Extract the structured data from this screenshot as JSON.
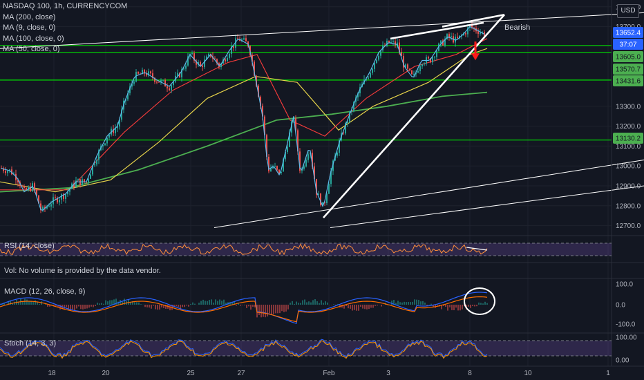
{
  "legend": {
    "symbol": "NASDAQ 100, 1h, CURRENCYCOM",
    "ma200": "MA (200, close)",
    "ma9": "MA (9, close, 0)",
    "ma100": "MA (100, close, 0)",
    "ma50": "MA (50, close, 0)"
  },
  "currency": "USD",
  "annotation": "Bearish",
  "volume_note": "Vol: No volume is provided by the data vendor.",
  "price_scale": {
    "ticks": [
      "13800.0",
      "13700.0",
      "13300.0",
      "13200.0",
      "13100.0",
      "13000.0",
      "12900.0",
      "12800.0",
      "12700.0"
    ],
    "tick_values": [
      13800,
      13700,
      13300,
      13200,
      13100,
      13000,
      12900,
      12800,
      12700
    ],
    "labels": [
      {
        "text": "13652.4",
        "value": 13652.4,
        "bg": "#2962ff",
        "fg": "#ffffff"
      },
      {
        "text": "37:07",
        "value": 13628,
        "bg": "#2962ff",
        "fg": "#ffffff"
      },
      {
        "text": "13605.0",
        "value": 13605.0,
        "bg": "#4caf50",
        "fg": "#131722"
      },
      {
        "text": "13570.7",
        "value": 13570.7,
        "bg": "#4caf50",
        "fg": "#131722"
      },
      {
        "text": "13431.6",
        "value": 13431.6,
        "bg": "#4caf50",
        "fg": "#131722"
      },
      {
        "text": "13130.2",
        "value": 13130.2,
        "bg": "#4caf50",
        "fg": "#131722"
      }
    ]
  },
  "time_axis": [
    "18",
    "20",
    "25",
    "27",
    "Feb",
    "3",
    "8",
    "10",
    "1"
  ],
  "panes": {
    "rsi": {
      "label": "RSI (14, close)"
    },
    "macd": {
      "label": "MACD (12, 26, close, 9)",
      "ticks": [
        "100.0",
        "0.0",
        "-100.0"
      ],
      "tick_values": [
        100,
        0,
        -100
      ]
    },
    "stoch": {
      "label": "Stoch (14, 3, 3)",
      "ticks": [
        "100.00",
        "0.00"
      ],
      "tick_values": [
        100,
        0
      ]
    }
  },
  "colors": {
    "up": "#26a69a",
    "down": "#ef5350",
    "ma9": "#5db8e8",
    "ma50": "#ef3a3a",
    "ma100": "#e6d34a",
    "ma200": "#4caf50",
    "support": "#00e600",
    "trend": "#ffffff",
    "rsi": "#ff8f3a",
    "macd": "#2962ff",
    "signal": "#ff6d00",
    "stoch_k": "#2962ff",
    "stoch_d": "#ff9800"
  },
  "chart_data": {
    "type": "candlestick",
    "title": "NASDAQ 100, 1h, CURRENCYCOM",
    "ylim": [
      12650,
      13820
    ],
    "support_levels": [
      13605.0,
      13570.7,
      13431.6,
      13130.2
    ],
    "last_price": 13652.4,
    "close_path": [
      [
        0,
        12990
      ],
      [
        15,
        12975
      ],
      [
        25,
        12940
      ],
      [
        35,
        12870
      ],
      [
        48,
        12900
      ],
      [
        60,
        12770
      ],
      [
        75,
        12820
      ],
      [
        95,
        12860
      ],
      [
        110,
        12920
      ],
      [
        125,
        12920
      ],
      [
        140,
        13050
      ],
      [
        155,
        13150
      ],
      [
        170,
        13200
      ],
      [
        180,
        13320
      ],
      [
        195,
        13450
      ],
      [
        210,
        13470
      ],
      [
        228,
        13430
      ],
      [
        245,
        13400
      ],
      [
        262,
        13470
      ],
      [
        275,
        13560
      ],
      [
        290,
        13500
      ],
      [
        305,
        13560
      ],
      [
        318,
        13500
      ],
      [
        332,
        13580
      ],
      [
        345,
        13640
      ],
      [
        360,
        13610
      ],
      [
        372,
        13400
      ],
      [
        380,
        13250
      ],
      [
        388,
        12980
      ],
      [
        396,
        13000
      ],
      [
        405,
        12950
      ],
      [
        415,
        13100
      ],
      [
        425,
        13250
      ],
      [
        435,
        12960
      ],
      [
        448,
        13100
      ],
      [
        458,
        12870
      ],
      [
        468,
        12790
      ],
      [
        478,
        12960
      ],
      [
        492,
        13130
      ],
      [
        505,
        13250
      ],
      [
        520,
        13380
      ],
      [
        535,
        13470
      ],
      [
        548,
        13570
      ],
      [
        562,
        13620
      ],
      [
        575,
        13610
      ],
      [
        585,
        13500
      ],
      [
        598,
        13440
      ],
      [
        610,
        13530
      ],
      [
        622,
        13530
      ],
      [
        635,
        13600
      ],
      [
        648,
        13650
      ],
      [
        660,
        13630
      ],
      [
        670,
        13660
      ],
      [
        680,
        13700
      ],
      [
        692,
        13680
      ],
      [
        702,
        13660
      ]
    ],
    "moving_averages": {
      "ma9": "follows price closely",
      "ma50": [
        [
          0,
          12880
        ],
        [
          100,
          12880
        ],
        [
          180,
          13170
        ],
        [
          250,
          13380
        ],
        [
          330,
          13520
        ],
        [
          372,
          13560
        ],
        [
          420,
          13230
        ],
        [
          470,
          13150
        ],
        [
          530,
          13340
        ],
        [
          600,
          13500
        ],
        [
          660,
          13560
        ],
        [
          705,
          13640
        ]
      ],
      "ma100": [
        [
          0,
          12920
        ],
        [
          80,
          12870
        ],
        [
          160,
          12930
        ],
        [
          230,
          13120
        ],
        [
          300,
          13340
        ],
        [
          370,
          13450
        ],
        [
          430,
          13420
        ],
        [
          490,
          13180
        ],
        [
          540,
          13300
        ],
        [
          620,
          13420
        ],
        [
          680,
          13560
        ],
        [
          705,
          13590
        ]
      ],
      "ma200": [
        [
          0,
          12870
        ],
        [
          100,
          12890
        ],
        [
          200,
          12980
        ],
        [
          300,
          13100
        ],
        [
          400,
          13230
        ],
        [
          480,
          13260
        ],
        [
          560,
          13300
        ],
        [
          640,
          13350
        ],
        [
          705,
          13370
        ]
      ]
    },
    "trendlines": [
      {
        "from": [
          0,
          13590
        ],
        "to": [
          932,
          13770
        ]
      },
      {
        "from": [
          468,
          12740
        ],
        "to": [
          730,
          13760
        ]
      },
      {
        "from": [
          565,
          13640
        ],
        "to": [
          700,
          13720
        ]
      },
      {
        "from": [
          640,
          13700
        ],
        "to": [
          730,
          13760
        ]
      },
      {
        "from": [
          310,
          12690
        ],
        "to": [
          932,
          13030
        ]
      },
      {
        "from": [
          478,
          12690
        ],
        "to": [
          932,
          12900
        ]
      }
    ]
  }
}
